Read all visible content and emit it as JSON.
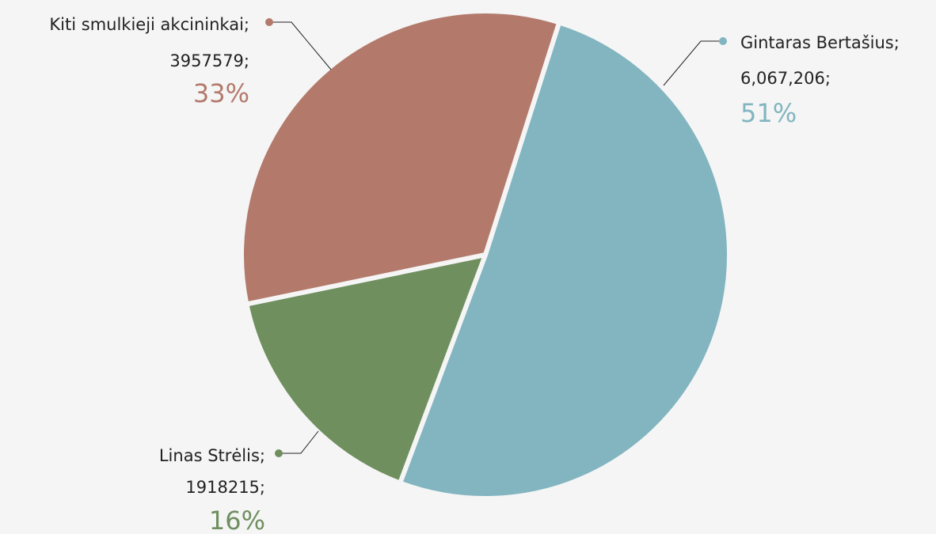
{
  "chart_data": {
    "type": "pie",
    "series": [
      {
        "name": "Gintaras Bertašius;",
        "color": "#82b5c0",
        "values": [
          6067206
        ],
        "value_labels": [
          "6,067,206;"
        ],
        "percent_labels": [
          "51%"
        ]
      },
      {
        "name": "Linas Strėlis;",
        "color": "#6f8f5f",
        "values": [
          1918215
        ],
        "value_labels": [
          "1918215;"
        ],
        "percent_labels": [
          "16%"
        ]
      },
      {
        "name": "Kiti smulkieji akcininkai;",
        "color": "#b37a6c",
        "values": [
          3957579
        ],
        "value_labels": [
          "3957579;"
        ],
        "percent_labels": [
          "33%"
        ]
      }
    ]
  }
}
